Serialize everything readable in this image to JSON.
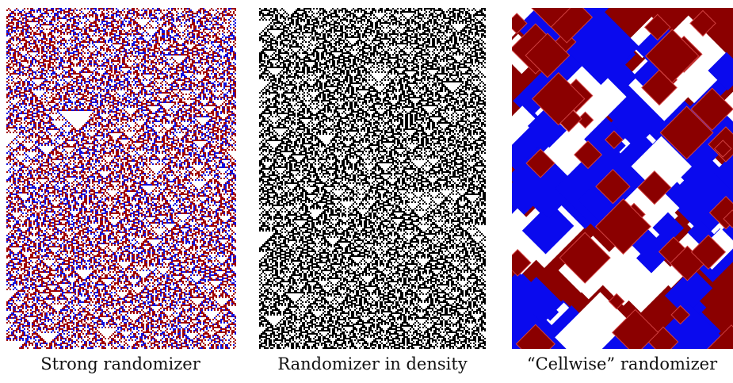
{
  "panels": [
    {
      "caption": "Strong randomizer"
    },
    {
      "caption": "Randomizer in density"
    },
    {
      "caption": "“Cellwise” randomizer"
    }
  ]
}
